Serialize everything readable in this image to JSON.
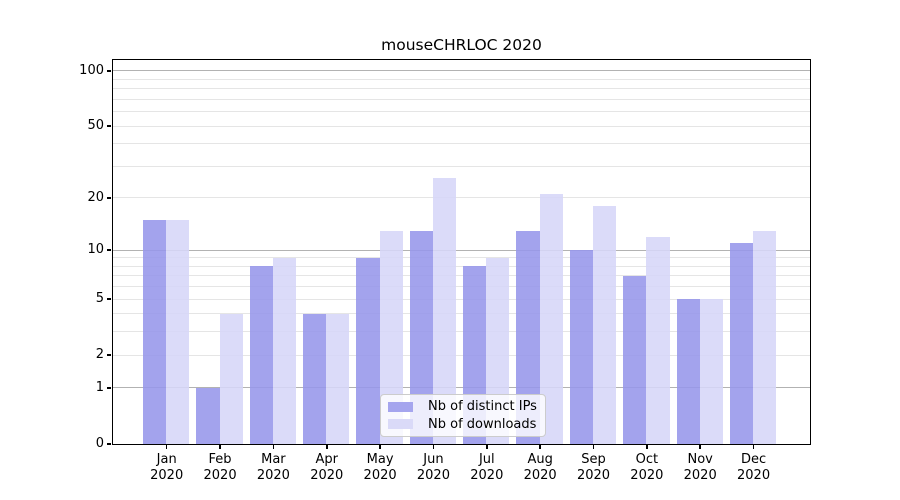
{
  "chart_data": {
    "type": "bar",
    "title": "mouseCHRLOC 2020",
    "categories": [
      "Jan",
      "Feb",
      "Mar",
      "Apr",
      "May",
      "Jun",
      "Jul",
      "Aug",
      "Sep",
      "Oct",
      "Nov",
      "Dec"
    ],
    "category_year": "2020",
    "series": [
      {
        "name": "Nb of distinct IPs",
        "color": "#a5a5ee",
        "values": [
          15,
          1,
          8,
          4,
          9,
          13,
          8,
          13,
          10,
          7,
          5,
          11
        ]
      },
      {
        "name": "Nb of downloads",
        "color": "#dadaf8",
        "values": [
          15,
          4,
          9,
          4,
          13,
          26,
          9,
          21,
          18,
          12,
          5,
          13
        ]
      }
    ],
    "yscale": "log10(1+x)",
    "ylim": [
      0,
      115
    ],
    "yticks": [
      0,
      1,
      2,
      5,
      10,
      20,
      50,
      100
    ],
    "major_gridlines": [
      1,
      10,
      100
    ],
    "minor_gridlines": [
      2,
      3,
      4,
      5,
      6,
      7,
      8,
      9,
      20,
      30,
      40,
      50,
      60,
      70,
      80,
      90
    ],
    "grid": true,
    "legend_position": "bottom-center",
    "xlabel": "",
    "ylabel": ""
  },
  "colors": {
    "bar_dark": "#a5a5ee",
    "bar_light": "#dadaf8",
    "grid_major": "#b2b2b2",
    "grid_minor": "#e5e5e5",
    "spine": "#000000",
    "legend_border": "#cccccc"
  }
}
